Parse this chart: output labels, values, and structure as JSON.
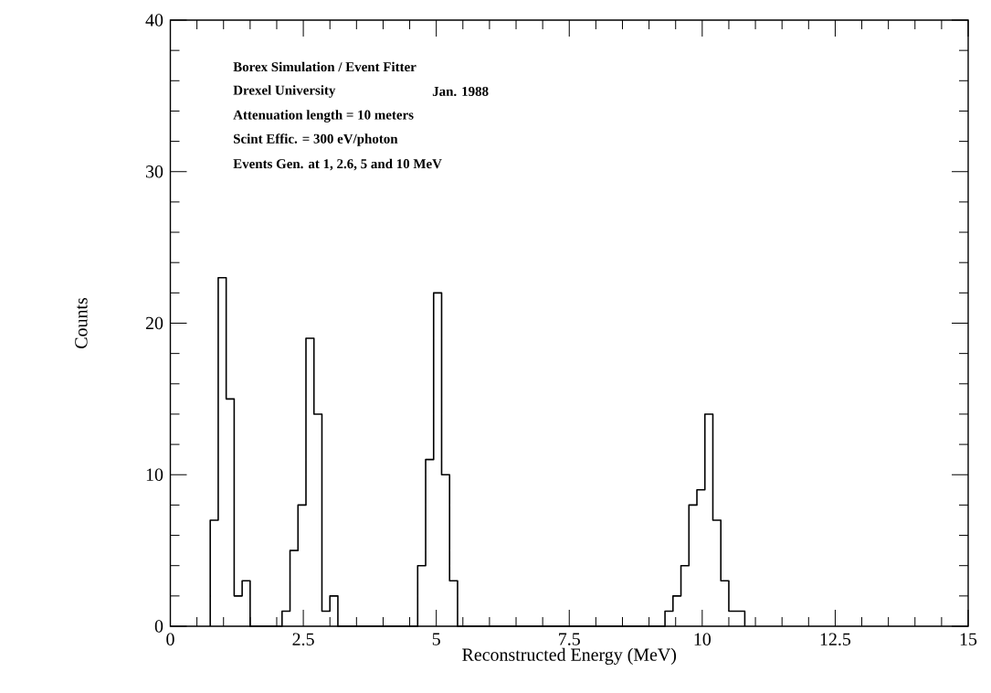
{
  "chart_data": {
    "type": "histogram",
    "xlabel": "Reconstructed Energy (MeV)",
    "ylabel": "Counts",
    "annotations": [
      "Borex Simulation / Event Fitter",
      "Drexel University",
      "Jan. 1988",
      "Attenuation length = 10 meters",
      "Scint Effic. = 300 eV/photon",
      "Events Gen. at 1, 2.6, 5 and 10 MeV"
    ],
    "bins": [
      0.75,
      0.9,
      1.05,
      1.2,
      1.35,
      1.5,
      1.65,
      1.8,
      1.95,
      2.1,
      2.25,
      2.4,
      2.55,
      2.7,
      2.85,
      3.0,
      3.15,
      3.3,
      3.45,
      3.6,
      3.75,
      3.9,
      4.05,
      4.2,
      4.35,
      4.5,
      4.65,
      4.8,
      4.95,
      5.1,
      5.25,
      5.4,
      5.55,
      5.7,
      5.85,
      6.0,
      6.15,
      6.3,
      6.45,
      6.6,
      6.75,
      6.9,
      7.05,
      7.2,
      7.35,
      7.5,
      7.65,
      7.8,
      7.95,
      8.1,
      8.25,
      8.4,
      8.55,
      8.7,
      8.85,
      9.0,
      9.15,
      9.3,
      9.45,
      9.6,
      9.75,
      9.9,
      10.05,
      10.2,
      10.35,
      10.5,
      10.65,
      10.8
    ],
    "values": [
      7,
      23,
      15,
      2,
      3,
      0,
      0,
      0,
      0,
      1,
      5,
      8,
      19,
      14,
      1,
      2,
      0,
      0,
      0,
      0,
      0,
      0,
      0,
      0,
      0,
      0,
      4,
      11,
      22,
      10,
      3,
      0,
      0,
      0,
      0,
      0,
      0,
      0,
      0,
      0,
      0,
      0,
      0,
      0,
      0,
      0,
      0,
      0,
      0,
      0,
      0,
      0,
      0,
      0,
      0,
      0,
      0,
      1,
      2,
      4,
      8,
      9,
      14,
      7,
      3,
      1,
      1
    ],
    "color": "#000000",
    "xlim": [
      0,
      15
    ],
    "ylim": [
      0,
      40
    ],
    "xticks": [
      0,
      2.5,
      5,
      7.5,
      10,
      12.5,
      15
    ],
    "yticks": [
      0,
      10,
      20,
      30,
      40
    ]
  }
}
